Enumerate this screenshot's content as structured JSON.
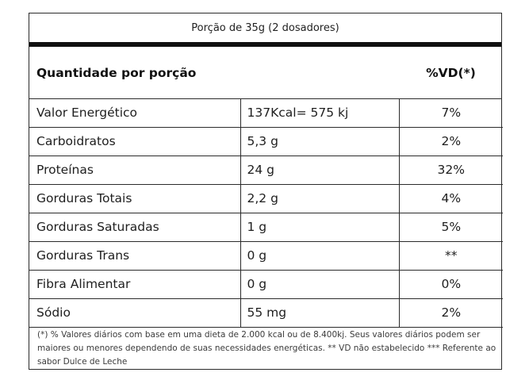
{
  "portion": "Porção de 35g (2 dosadores)",
  "header": {
    "quantity_label": "Quantidade por porção",
    "vd_label": "%VD(*)"
  },
  "rows": [
    {
      "nutrient": "Valor Energético",
      "amount": "137Kcal= 575 kj",
      "vd": "7%"
    },
    {
      "nutrient": "Carboidratos",
      "amount": "5,3 g",
      "vd": "2%"
    },
    {
      "nutrient": "Proteínas",
      "amount": "24 g",
      "vd": "32%"
    },
    {
      "nutrient": "Gorduras Totais",
      "amount": "2,2 g",
      "vd": "4%"
    },
    {
      "nutrient": "Gorduras Saturadas",
      "amount": "1 g",
      "vd": "5%"
    },
    {
      "nutrient": "Gorduras Trans",
      "amount": "0 g",
      "vd": "**"
    },
    {
      "nutrient": "Fibra Alimentar",
      "amount": "0 g",
      "vd": "0%"
    },
    {
      "nutrient": "Sódio",
      "amount": "55 mg",
      "vd": "2%"
    }
  ],
  "footnote": "(*) % Valores diários com base em uma dieta de 2.000 kcal ou de 8.400kj. Seus valores diários podem ser maiores ou menores dependendo de suas necessidades energéticas. ** VD não estabelecido *** Referente ao sabor Dulce de Leche"
}
